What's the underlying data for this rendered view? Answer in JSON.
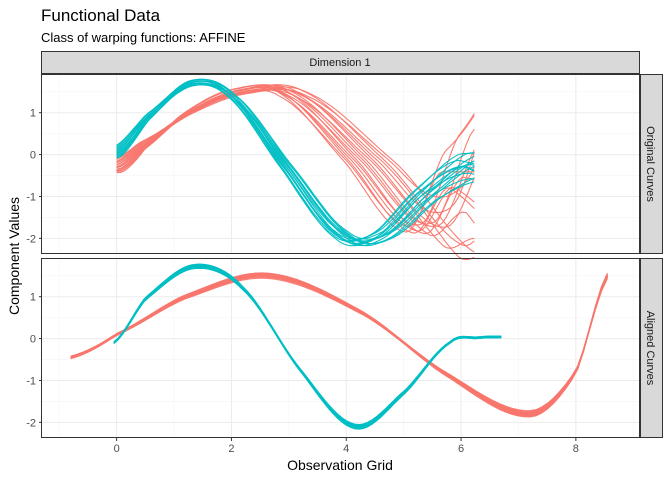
{
  "title": "Functional Data",
  "subtitle": "Class of warping functions: AFFINE",
  "chart_data": {
    "type": "line",
    "column_strip": "Dimension 1",
    "xlabel": "Observation Grid",
    "ylabel": "Component Values",
    "xlim": [
      -1.3,
      9.1
    ],
    "x_ticks": [
      0,
      2,
      4,
      6,
      8
    ],
    "colors": {
      "group_a": "#F8766D",
      "group_b": "#00BFC4"
    },
    "grid": true,
    "legend": "none",
    "panels": [
      {
        "strip": "Original Curves",
        "ylim": [
          -2.35,
          1.9
        ],
        "y_ticks": [
          -2,
          -1,
          0,
          1
        ],
        "series_groups": [
          {
            "color": "group_a",
            "count": 16,
            "domain": [
              0,
              6.23
            ],
            "template": {
              "t": [
                0,
                0.45,
                1.25,
                2.1,
                3.05,
                4.3,
                5.55,
                6.23
              ],
              "v": [
                -0.3,
                0.2,
                1.0,
                1.5,
                1.45,
                -0.1,
                -1.8,
                -0.4
              ]
            },
            "shift_range": [
              -0.55,
              0.55
            ],
            "end_spread": [
              -1.4,
              1.4
            ]
          },
          {
            "color": "group_b",
            "count": 14,
            "domain": [
              0,
              6.23
            ],
            "template": {
              "t": [
                0,
                0.55,
                1.3,
                2.0,
                2.9,
                3.9,
                4.6,
                5.4,
                6.23
              ],
              "v": [
                0.05,
                0.9,
                1.7,
                1.4,
                -0.2,
                -1.9,
                -1.95,
                -0.9,
                0.0
              ]
            },
            "shift_range": [
              -0.25,
              0.25
            ],
            "end_spread": [
              -0.5,
              0.05
            ]
          }
        ]
      },
      {
        "strip": "Aligned Curves",
        "ylim": [
          -2.35,
          1.9
        ],
        "y_ticks": [
          -2,
          -1,
          0,
          1
        ],
        "series_groups": [
          {
            "color": "group_a",
            "count": 16,
            "domain": [
              -0.8,
              8.55
            ],
            "template": {
              "t": [
                -0.8,
                0.0,
                1.2,
                2.65,
                4.3,
                5.8,
                7.2,
                8.0,
                8.55
              ],
              "v": [
                -0.45,
                0.1,
                1.0,
                1.5,
                0.6,
                -0.9,
                -1.8,
                -0.8,
                1.5
              ]
            },
            "amp_spread": 0.07
          },
          {
            "color": "group_b",
            "count": 14,
            "domain": [
              -0.05,
              6.7
            ],
            "template": {
              "t": [
                -0.05,
                0.5,
                1.35,
                2.2,
                3.2,
                4.15,
                5.0,
                5.8,
                6.3,
                6.7
              ],
              "v": [
                -0.1,
                0.95,
                1.72,
                1.2,
                -0.75,
                -2.1,
                -1.3,
                -0.1,
                0.02,
                0.04
              ]
            },
            "amp_spread": 0.05
          }
        ]
      }
    ]
  }
}
